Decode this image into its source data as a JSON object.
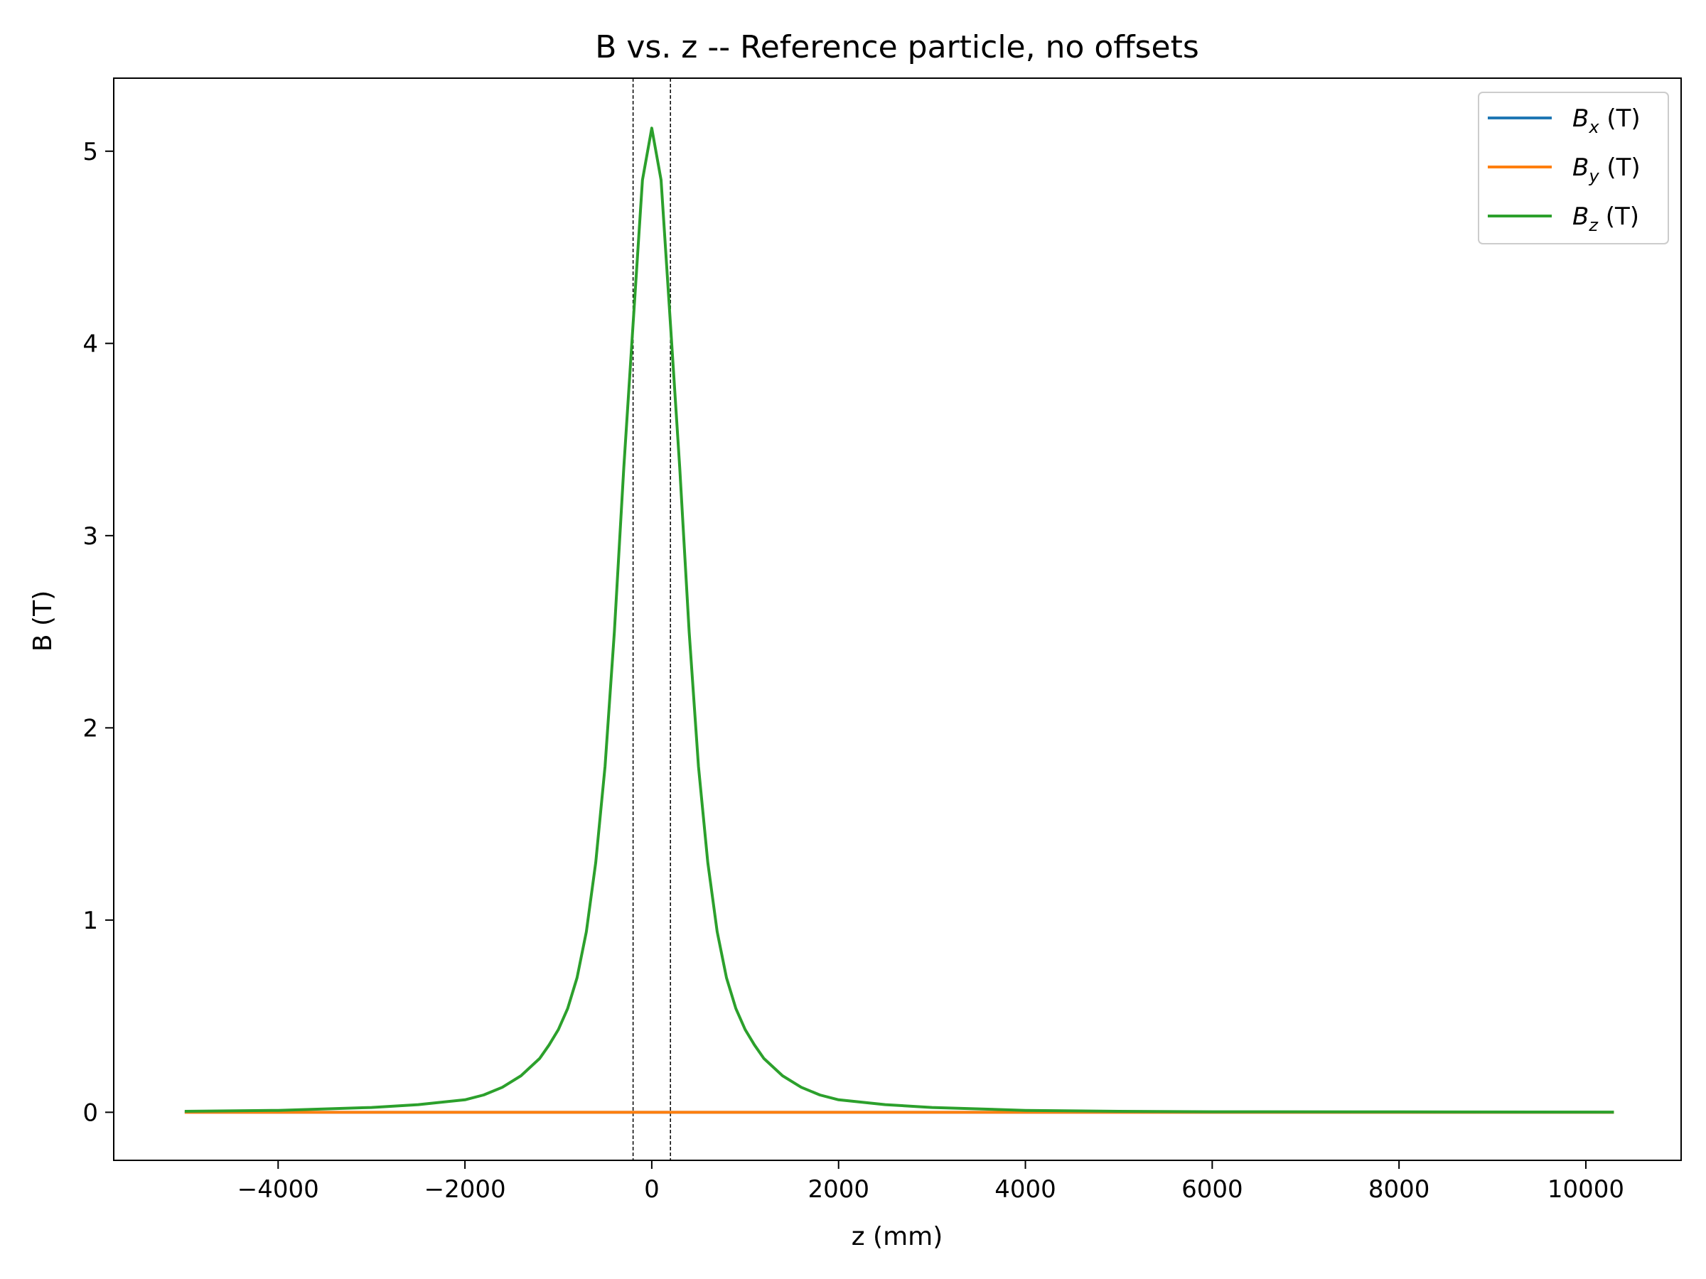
{
  "chart_data": {
    "type": "line",
    "title": "B vs. z -- Reference particle, no offsets",
    "xlabel": "z (mm)",
    "ylabel": "B (T)",
    "xlim": [
      -5760,
      11020
    ],
    "ylim": [
      -0.25,
      5.38
    ],
    "xticks": [
      -4000,
      -2000,
      0,
      2000,
      4000,
      6000,
      8000,
      10000
    ],
    "xtick_labels": [
      "−4000",
      "−2000",
      "0",
      "2000",
      "4000",
      "6000",
      "8000",
      "10000"
    ],
    "yticks": [
      0,
      1,
      2,
      3,
      4,
      5
    ],
    "ytick_labels": [
      "0",
      "1",
      "2",
      "3",
      "4",
      "5"
    ],
    "grid": false,
    "legend_position": "top-right",
    "vlines": [
      -200,
      200
    ],
    "series": [
      {
        "name": "Bx",
        "label_main": "B",
        "label_sub": "x",
        "label_unit": " (T)",
        "color": "#1f77b4",
        "x": [
          -5000,
          10300
        ],
        "y": [
          0,
          0
        ]
      },
      {
        "name": "By",
        "label_main": "B",
        "label_sub": "y",
        "label_unit": " (T)",
        "color": "#ff7f0e",
        "x": [
          -5000,
          10300
        ],
        "y": [
          0,
          0
        ]
      },
      {
        "name": "Bz",
        "label_main": "B",
        "label_sub": "z",
        "label_unit": " (T)",
        "color": "#2ca02c",
        "x": [
          -5000,
          -4000,
          -3000,
          -2500,
          -2000,
          -1800,
          -1600,
          -1400,
          -1200,
          -1100,
          -1000,
          -900,
          -800,
          -700,
          -600,
          -500,
          -400,
          -300,
          -200,
          -100,
          0,
          100,
          200,
          300,
          400,
          500,
          600,
          700,
          800,
          900,
          1000,
          1100,
          1200,
          1400,
          1600,
          1800,
          2000,
          2500,
          3000,
          4000,
          5000,
          6000,
          8000,
          10300
        ],
        "y": [
          0.005,
          0.01,
          0.025,
          0.04,
          0.065,
          0.09,
          0.13,
          0.19,
          0.28,
          0.35,
          0.43,
          0.54,
          0.7,
          0.94,
          1.3,
          1.8,
          2.5,
          3.35,
          4.1,
          4.85,
          5.12,
          4.85,
          4.1,
          3.35,
          2.5,
          1.8,
          1.3,
          0.94,
          0.7,
          0.54,
          0.43,
          0.35,
          0.28,
          0.19,
          0.13,
          0.09,
          0.065,
          0.04,
          0.025,
          0.01,
          0.005,
          0.003,
          0.002,
          0.001
        ]
      }
    ]
  }
}
